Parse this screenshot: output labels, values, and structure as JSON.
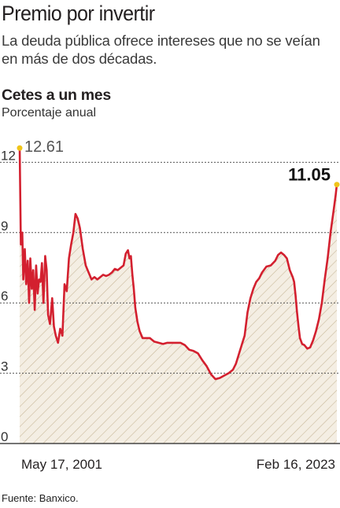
{
  "header": {
    "title": "Premio por invertir",
    "subtitle": "La deuda pública ofrece intereses que no se veían en más de dos décadas."
  },
  "source": "Fuente: Banxico.",
  "colors": {
    "line": "#d3202f",
    "area_hatch": "#c9b99a",
    "area_fill": "#f4eee3",
    "marker": "#f0c419",
    "grid": "#555555"
  },
  "chart_data": {
    "type": "area",
    "title": "Cetes a un mes",
    "subtitle": "Porcentaje anual",
    "xlabel": "",
    "ylabel": "",
    "ylim": [
      0,
      12.61
    ],
    "yticks": [
      0,
      3,
      6,
      9,
      12
    ],
    "x_tick_labels": [
      "May 17, 2001",
      "Feb 16, 2023"
    ],
    "grid": true,
    "annotations": [
      {
        "label": "12.61",
        "x": 2001.37,
        "y": 12.61
      },
      {
        "label": "11.05",
        "x": 2023.13,
        "y": 11.05
      }
    ],
    "series": [
      {
        "x": [
          2001.37,
          2001.45,
          2001.55,
          2001.62,
          2001.72,
          2001.82,
          2001.92,
          2002.02,
          2002.1,
          2002.2,
          2002.3,
          2002.4,
          2002.5,
          2002.6,
          2002.7,
          2002.8,
          2002.9,
          2003.0,
          2003.12,
          2003.22,
          2003.32,
          2003.45,
          2003.6,
          2003.72,
          2003.85,
          2004.0,
          2004.15,
          2004.3,
          2004.45,
          2004.6,
          2004.75,
          2004.9,
          2005.05,
          2005.2,
          2005.35,
          2005.5,
          2005.7,
          2005.9,
          2006.1,
          2006.3,
          2006.5,
          2006.7,
          2006.9,
          2007.1,
          2007.3,
          2007.5,
          2007.7,
          2007.9,
          2008.1,
          2008.3,
          2008.5,
          2008.65,
          2008.8,
          2008.9,
          2009.0,
          2009.1,
          2009.2,
          2009.3,
          2009.45,
          2009.6,
          2009.8,
          2010.0,
          2010.3,
          2010.6,
          2010.9,
          2011.2,
          2011.5,
          2011.8,
          2012.1,
          2012.4,
          2012.7,
          2013.0,
          2013.3,
          2013.6,
          2013.9,
          2014.2,
          2014.5,
          2014.8,
          2015.1,
          2015.4,
          2015.7,
          2016.0,
          2016.2,
          2016.4,
          2016.6,
          2016.8,
          2017.0,
          2017.2,
          2017.4,
          2017.6,
          2017.8,
          2018.0,
          2018.3,
          2018.6,
          2018.9,
          2019.1,
          2019.3,
          2019.5,
          2019.7,
          2019.9,
          2020.1,
          2020.2,
          2020.3,
          2020.4,
          2020.5,
          2020.6,
          2020.75,
          2020.9,
          2021.1,
          2021.3,
          2021.5,
          2021.7,
          2021.9,
          2022.1,
          2022.3,
          2022.5,
          2022.7,
          2022.9,
          2023.05,
          2023.13
        ],
        "y": [
          12.61,
          8.5,
          9.0,
          7.0,
          8.3,
          6.8,
          7.8,
          6.0,
          7.9,
          6.6,
          7.4,
          5.7,
          7.6,
          6.4,
          7.0,
          6.9,
          7.7,
          6.0,
          8.0,
          7.4,
          5.5,
          5.1,
          6.2,
          5.0,
          4.6,
          4.3,
          4.9,
          4.6,
          6.8,
          6.5,
          7.9,
          8.5,
          9.0,
          9.8,
          9.6,
          9.2,
          8.3,
          7.6,
          7.3,
          7.0,
          7.1,
          7.0,
          7.1,
          7.2,
          7.15,
          7.2,
          7.3,
          7.45,
          7.4,
          7.5,
          7.6,
          8.1,
          8.25,
          7.9,
          8.0,
          7.2,
          6.6,
          5.8,
          5.2,
          4.8,
          4.5,
          4.5,
          4.5,
          4.35,
          4.3,
          4.25,
          4.3,
          4.3,
          4.3,
          4.3,
          4.2,
          4.0,
          3.95,
          3.85,
          3.55,
          3.3,
          2.95,
          2.75,
          2.8,
          2.9,
          3.0,
          3.15,
          3.4,
          3.8,
          4.2,
          4.6,
          5.6,
          6.2,
          6.6,
          6.9,
          7.05,
          7.3,
          7.55,
          7.6,
          7.8,
          8.05,
          8.15,
          8.05,
          7.9,
          7.4,
          7.1,
          6.9,
          6.3,
          5.6,
          5.0,
          4.5,
          4.25,
          4.2,
          4.05,
          4.1,
          4.4,
          4.8,
          5.3,
          6.0,
          7.0,
          7.9,
          9.0,
          9.9,
          10.6,
          11.05
        ]
      }
    ]
  }
}
